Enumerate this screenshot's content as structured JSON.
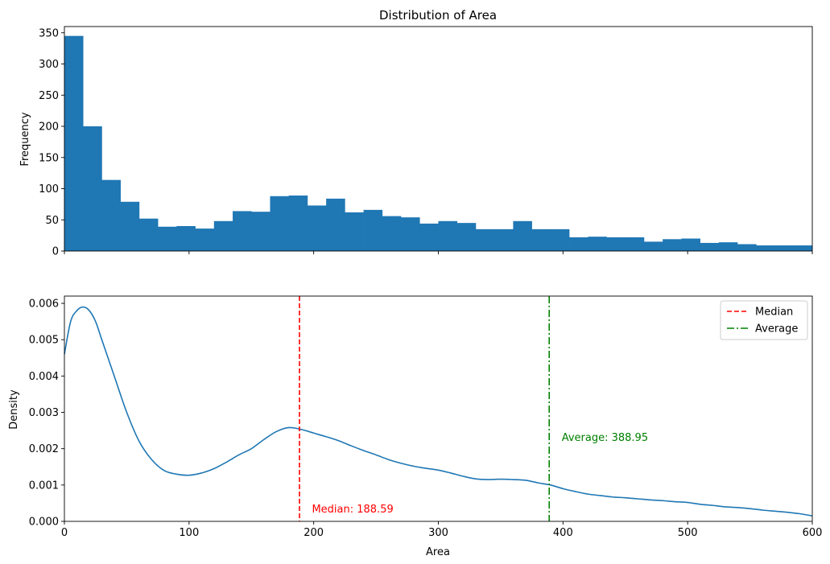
{
  "chart_data": [
    {
      "type": "bar",
      "subtype": "histogram",
      "title": "Distribution of Area",
      "xlabel": "",
      "ylabel": "Frequency",
      "xlim": [
        0,
        600
      ],
      "ylim": [
        0,
        360
      ],
      "x_ticks": [
        0,
        100,
        200,
        300,
        400,
        500,
        600
      ],
      "y_ticks": [
        "0",
        "50",
        "100",
        "150",
        "200",
        "250",
        "300",
        "350"
      ],
      "bin_edges": [
        0,
        15,
        30,
        45,
        60,
        75,
        90,
        105,
        120,
        135,
        150,
        165,
        180,
        195,
        210,
        225,
        240,
        255,
        270,
        285,
        300,
        315,
        330,
        345,
        360,
        375,
        390,
        405,
        420,
        435,
        450,
        465,
        480,
        495,
        510,
        525,
        540,
        555,
        570,
        585,
        600
      ],
      "values": [
        345,
        200,
        114,
        79,
        52,
        39,
        40,
        36,
        48,
        64,
        63,
        88,
        89,
        73,
        84,
        62,
        66,
        56,
        54,
        44,
        48,
        45,
        35,
        35,
        48,
        35,
        35,
        22,
        23,
        22,
        22,
        15,
        19,
        20,
        13,
        14,
        11,
        9,
        9,
        9
      ],
      "color": "#1f77b4",
      "grid": false
    },
    {
      "type": "line",
      "subtype": "density",
      "title": "",
      "xlabel": "Area",
      "ylabel": "Density",
      "xlim": [
        0,
        600
      ],
      "ylim": [
        0,
        0.0062
      ],
      "x_ticks": [
        "0",
        "100",
        "200",
        "300",
        "400",
        "500",
        "600"
      ],
      "y_ticks": [
        "0.000",
        "0.001",
        "0.002",
        "0.003",
        "0.004",
        "0.005",
        "0.006"
      ],
      "x": [
        0,
        5,
        10,
        15,
        20,
        25,
        30,
        40,
        50,
        60,
        70,
        80,
        90,
        100,
        110,
        120,
        130,
        140,
        150,
        160,
        170,
        180,
        190,
        200,
        210,
        220,
        230,
        240,
        250,
        260,
        270,
        280,
        290,
        300,
        310,
        320,
        330,
        340,
        350,
        360,
        370,
        380,
        390,
        400,
        410,
        420,
        430,
        440,
        450,
        460,
        470,
        480,
        490,
        500,
        510,
        520,
        530,
        540,
        550,
        560,
        570,
        580,
        590,
        600
      ],
      "y": [
        0.0046,
        0.0055,
        0.0058,
        0.0059,
        0.0058,
        0.0055,
        0.005,
        0.004,
        0.003,
        0.0022,
        0.0017,
        0.0014,
        0.0013,
        0.00127,
        0.00133,
        0.00145,
        0.00163,
        0.00183,
        0.002,
        0.00225,
        0.00247,
        0.00258,
        0.00253,
        0.00243,
        0.00233,
        0.00222,
        0.00208,
        0.00195,
        0.00183,
        0.0017,
        0.0016,
        0.00152,
        0.00146,
        0.00141,
        0.00133,
        0.00124,
        0.00117,
        0.00115,
        0.00116,
        0.00115,
        0.00113,
        0.00106,
        0.001,
        0.0009,
        0.00082,
        0.00075,
        0.00071,
        0.00067,
        0.00065,
        0.00062,
        0.00059,
        0.00057,
        0.00054,
        0.00052,
        0.00047,
        0.00044,
        0.0004,
        0.00038,
        0.00035,
        0.00031,
        0.00028,
        0.00025,
        0.00021,
        0.00015
      ],
      "color": "#1f77b4",
      "grid": false,
      "reference_lines": [
        {
          "name": "Median",
          "value": 188.59,
          "color": "#ff0000",
          "style": "dashed",
          "label": "Median: 188.59"
        },
        {
          "name": "Average",
          "value": 388.95,
          "color": "#008000",
          "style": "dashdot",
          "label": "Average: 388.95"
        }
      ],
      "legend": {
        "placement": "top-right",
        "entries": [
          "Median",
          "Average"
        ]
      }
    }
  ]
}
